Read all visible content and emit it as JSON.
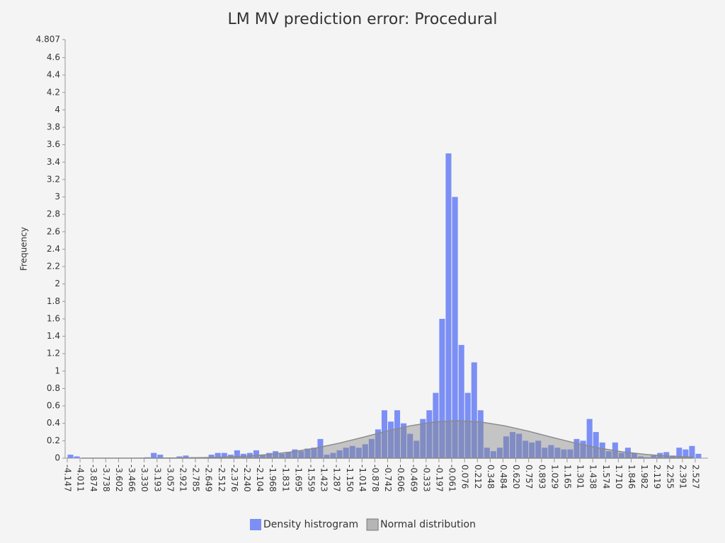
{
  "chart_data": {
    "type": "histogram",
    "title": "LM MV prediction error: Procedural",
    "ylabel": "Frequency",
    "bins": [
      -4.147,
      -4.079,
      -4.011,
      -3.943,
      -3.874,
      -3.806,
      -3.738,
      -3.67,
      -3.602,
      -3.534,
      -3.466,
      -3.398,
      -3.33,
      -3.262,
      -3.193,
      -3.125,
      -3.057,
      -2.989,
      -2.921,
      -2.853,
      -2.785,
      -2.717,
      -2.649,
      -2.581,
      -2.512,
      -2.444,
      -2.376,
      -2.308,
      -2.24,
      -2.172,
      -2.104,
      -2.036,
      -1.968,
      -1.9,
      -1.831,
      -1.763,
      -1.695,
      -1.627,
      -1.559,
      -1.491,
      -1.423,
      -1.355,
      -1.287,
      -1.219,
      -1.15,
      -1.082,
      -1.014,
      -0.946,
      -0.878,
      -0.81,
      -0.742,
      -0.674,
      -0.606,
      -0.538,
      -0.469,
      -0.401,
      -0.333,
      -0.265,
      -0.197,
      -0.129,
      -0.061,
      0.008,
      0.076,
      0.144,
      0.212,
      0.28,
      0.348,
      0.416,
      0.484,
      0.552,
      0.62,
      0.689,
      0.757,
      0.825,
      0.893,
      0.961,
      1.029,
      1.097,
      1.165,
      1.233,
      1.301,
      1.37,
      1.438,
      1.506,
      1.574,
      1.642,
      1.71,
      1.778,
      1.846,
      1.914,
      1.982,
      2.051,
      2.119,
      2.187,
      2.255,
      2.323,
      2.391,
      2.459,
      2.527,
      2.595,
      2.663
    ],
    "series": [
      {
        "name": "Density histrogram",
        "color": "#7b8ff5",
        "values": [
          0.04,
          0.02,
          0,
          0,
          0,
          0,
          0,
          0,
          0,
          0,
          0,
          0,
          0.01,
          0.06,
          0.04,
          0,
          0,
          0.02,
          0.03,
          0.01,
          0.01,
          0.01,
          0.04,
          0.06,
          0.06,
          0.04,
          0.09,
          0.05,
          0.06,
          0.09,
          0.04,
          0.06,
          0.08,
          0.05,
          0.07,
          0.1,
          0.08,
          0.11,
          0.12,
          0.22,
          0.04,
          0.06,
          0.09,
          0.12,
          0.14,
          0.12,
          0.16,
          0.22,
          0.33,
          0.55,
          0.42,
          0.55,
          0.4,
          0.28,
          0.2,
          0.45,
          0.55,
          0.75,
          1.6,
          3.5,
          3.0,
          1.3,
          0.75,
          1.1,
          0.55,
          0.12,
          0.08,
          0.12,
          0.25,
          0.3,
          0.28,
          0.2,
          0.18,
          0.2,
          0.12,
          0.15,
          0.12,
          0.1,
          0.1,
          0.22,
          0.2,
          0.45,
          0.3,
          0.18,
          0.08,
          0.18,
          0.06,
          0.12,
          0.06,
          0.02,
          0.01,
          0.03,
          0.06,
          0.07,
          0.03,
          0.12,
          0.1,
          0.14,
          0.05
        ]
      },
      {
        "name": "Normal distribution",
        "color": "#8a8a8a",
        "type": "area",
        "x": [
          -4.0,
          -3.5,
          -3.0,
          -2.75,
          -2.5,
          -2.25,
          -2.0,
          -1.75,
          -1.5,
          -1.25,
          -1.0,
          -0.75,
          -0.5,
          -0.25,
          0,
          0.25,
          0.5,
          0.75,
          1.0,
          1.25,
          1.5,
          1.75,
          2.0,
          2.25,
          2.5
        ],
        "values": [
          0.0,
          0.0004,
          0.0024,
          0.0054,
          0.0116,
          0.023,
          0.043,
          0.073,
          0.117,
          0.174,
          0.241,
          0.311,
          0.372,
          0.415,
          0.43,
          0.415,
          0.372,
          0.311,
          0.241,
          0.174,
          0.117,
          0.073,
          0.043,
          0.023,
          0.0116
        ]
      }
    ],
    "xlim": [
      -4.147,
      2.663
    ],
    "xticks": [
      -4.147,
      -4.011,
      -3.874,
      -3.738,
      -3.602,
      -3.466,
      {
        "value": -3.33,
        "label": "-3.330"
      },
      -3.193,
      -3.057,
      -2.921,
      -2.785,
      -2.649,
      -2.512,
      -2.376,
      {
        "value": -2.24,
        "label": "-2.240"
      },
      -2.104,
      -1.968,
      -1.831,
      -1.695,
      -1.559,
      -1.423,
      -1.287,
      {
        "value": -1.15,
        "label": "-1.150"
      },
      -1.014,
      -0.878,
      -0.742,
      -0.606,
      -0.469,
      -0.333,
      -0.197,
      -0.061,
      0.076,
      0.212,
      0.348,
      0.484,
      {
        "value": 0.62,
        "label": "0.620"
      },
      0.757,
      0.893,
      1.029,
      1.165,
      1.301,
      1.438,
      1.574,
      {
        "value": 1.71,
        "label": "1.710"
      },
      1.846,
      1.982,
      2.119,
      2.255,
      2.391,
      2.527
    ],
    "ylim": [
      0,
      4.807
    ],
    "yticks": [
      0,
      0.2,
      0.4,
      0.6,
      0.8,
      1,
      1.2,
      1.4,
      1.6,
      1.8,
      2,
      2.2,
      2.4,
      2.6,
      2.8,
      3,
      3.2,
      3.4,
      3.6,
      3.8,
      4,
      4.2,
      4.4,
      4.6,
      4.807
    ],
    "legend": "bottom"
  }
}
